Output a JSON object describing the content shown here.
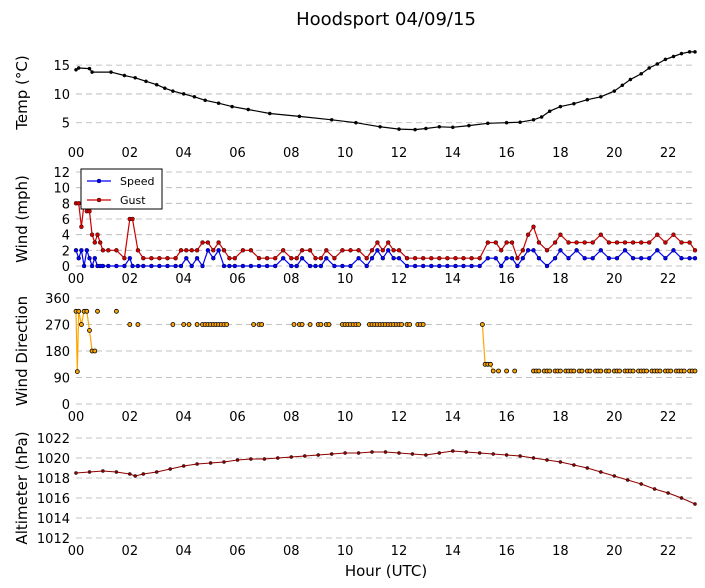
{
  "title": "Hoodsport 04/09/15",
  "xlabel": "Hour (UTC)",
  "xticks": [
    "00",
    "02",
    "04",
    "06",
    "08",
    "10",
    "12",
    "14",
    "16",
    "18",
    "20",
    "22"
  ],
  "colors": {
    "temp": "#000000",
    "speed": "#0000ff",
    "gust": "#cc0000",
    "direction": "#ffa500",
    "altimeter": "#8b0000",
    "grid": "#b0b0b0"
  },
  "chart_data": [
    {
      "type": "line",
      "ylabel": "Temp ($^\\circ$C)",
      "ylabel_display": "Temp (°C)",
      "yticks": [
        5,
        10,
        15
      ],
      "ylim": [
        2,
        18.5
      ],
      "xlim": [
        0,
        23
      ],
      "grid": true,
      "series": [
        {
          "key": "temp",
          "color": "#000000",
          "x": [
            0,
            0.1,
            0.5,
            0.6,
            1.3,
            1.8,
            2.2,
            2.6,
            3.0,
            3.3,
            3.6,
            4.0,
            4.4,
            4.8,
            5.3,
            5.8,
            6.4,
            7.2,
            8.3,
            9.5,
            10.4,
            11.3,
            12.0,
            12.6,
            13.0,
            13.5,
            14.0,
            14.6,
            15.3,
            16.0,
            16.5,
            17.0,
            17.3,
            17.6,
            18.0,
            18.5,
            19.0,
            19.5,
            20.0,
            20.3,
            20.6,
            21.0,
            21.3,
            21.6,
            21.9,
            22.2,
            22.5,
            22.8,
            23.0
          ],
          "y": [
            14.2,
            14.5,
            14.4,
            13.8,
            13.8,
            13.2,
            12.8,
            12.2,
            11.6,
            11.0,
            10.5,
            10.0,
            9.5,
            8.9,
            8.4,
            7.8,
            7.3,
            6.6,
            6.1,
            5.5,
            5.0,
            4.3,
            3.9,
            3.8,
            4.0,
            4.3,
            4.2,
            4.5,
            4.9,
            5.0,
            5.1,
            5.5,
            6.0,
            7.0,
            7.8,
            8.3,
            9.0,
            9.5,
            10.5,
            11.5,
            12.5,
            13.5,
            14.5,
            15.2,
            16.0,
            16.5,
            17.0,
            17.3,
            17.3
          ]
        }
      ]
    },
    {
      "type": "line",
      "ylabel": "Wind (mph)",
      "yticks": [
        0,
        2,
        4,
        6,
        8,
        10,
        12
      ],
      "ylim": [
        0,
        12
      ],
      "xlim": [
        0,
        23
      ],
      "grid": true,
      "legend": {
        "placement": "top-left",
        "entries": [
          "Speed",
          "Gust"
        ]
      },
      "series": [
        {
          "key": "speed",
          "name": "Speed",
          "color": "#0000ff",
          "x": [
            0,
            0.1,
            0.2,
            0.3,
            0.4,
            0.5,
            0.6,
            0.7,
            0.8,
            0.9,
            1.0,
            1.2,
            1.5,
            1.8,
            2.0,
            2.1,
            2.3,
            2.5,
            2.8,
            3.1,
            3.4,
            3.7,
            3.9,
            4.1,
            4.3,
            4.5,
            4.7,
            4.9,
            5.1,
            5.3,
            5.5,
            5.7,
            5.9,
            6.2,
            6.5,
            6.8,
            7.1,
            7.4,
            7.7,
            8.0,
            8.2,
            8.4,
            8.7,
            8.9,
            9.1,
            9.3,
            9.6,
            9.9,
            10.2,
            10.5,
            10.8,
            11.0,
            11.2,
            11.4,
            11.6,
            11.8,
            12.0,
            12.3,
            12.6,
            12.9,
            13.2,
            13.5,
            13.8,
            14.1,
            14.4,
            14.7,
            15.0,
            15.3,
            15.6,
            15.8,
            16.0,
            16.2,
            16.4,
            16.6,
            16.8,
            17.0,
            17.2,
            17.5,
            17.8,
            18.0,
            18.3,
            18.6,
            18.9,
            19.2,
            19.5,
            19.8,
            20.1,
            20.4,
            20.7,
            21.0,
            21.3,
            21.6,
            21.9,
            22.2,
            22.5,
            22.8,
            23.0
          ],
          "y": [
            2,
            1,
            2,
            0,
            2,
            1,
            0,
            1,
            0,
            0,
            0,
            0,
            0,
            0,
            1,
            0,
            0,
            0,
            0,
            0,
            0,
            0,
            0,
            1,
            0,
            1,
            0,
            2,
            1,
            2,
            0,
            0,
            0,
            0,
            0,
            0,
            0,
            0,
            1,
            0,
            0,
            1,
            0,
            0,
            0,
            1,
            0,
            0,
            0,
            1,
            0,
            1,
            2,
            1,
            2,
            1,
            1,
            0,
            0,
            0,
            0,
            0,
            0,
            0,
            0,
            0,
            0,
            1,
            1,
            0,
            1,
            1,
            0,
            1,
            2,
            2,
            1,
            0,
            1,
            2,
            1,
            2,
            1,
            1,
            2,
            1,
            1,
            2,
            1,
            1,
            1,
            2,
            1,
            2,
            1,
            1,
            1
          ]
        },
        {
          "key": "gust",
          "name": "Gust",
          "color": "#cc0000",
          "x": [
            0,
            0.1,
            0.2,
            0.3,
            0.4,
            0.5,
            0.6,
            0.7,
            0.8,
            0.9,
            1.0,
            1.2,
            1.5,
            1.8,
            2.0,
            2.1,
            2.3,
            2.5,
            2.8,
            3.1,
            3.4,
            3.7,
            3.9,
            4.1,
            4.3,
            4.5,
            4.7,
            4.9,
            5.1,
            5.3,
            5.5,
            5.7,
            5.9,
            6.2,
            6.5,
            6.8,
            7.1,
            7.4,
            7.7,
            8.0,
            8.2,
            8.4,
            8.7,
            8.9,
            9.1,
            9.3,
            9.6,
            9.9,
            10.2,
            10.5,
            10.8,
            11.0,
            11.2,
            11.4,
            11.6,
            11.8,
            12.0,
            12.3,
            12.6,
            12.9,
            13.2,
            13.5,
            13.8,
            14.1,
            14.4,
            14.7,
            15.0,
            15.3,
            15.6,
            15.8,
            16.0,
            16.2,
            16.4,
            16.6,
            16.8,
            17.0,
            17.2,
            17.5,
            17.8,
            18.0,
            18.3,
            18.6,
            18.9,
            19.2,
            19.5,
            19.8,
            20.1,
            20.4,
            20.7,
            21.0,
            21.3,
            21.6,
            21.9,
            22.2,
            22.5,
            22.8,
            23.0
          ],
          "y": [
            8,
            8,
            5,
            8,
            7,
            7,
            4,
            3,
            4,
            3,
            2,
            2,
            2,
            1,
            6,
            6,
            2,
            1,
            1,
            1,
            1,
            1,
            2,
            2,
            2,
            2,
            3,
            3,
            2,
            3,
            2,
            1,
            1,
            2,
            2,
            1,
            1,
            1,
            2,
            1,
            1,
            2,
            2,
            1,
            1,
            2,
            1,
            2,
            2,
            2,
            1,
            2,
            3,
            2,
            3,
            2,
            2,
            1,
            1,
            1,
            1,
            1,
            1,
            1,
            1,
            1,
            1,
            3,
            3,
            2,
            3,
            3,
            1,
            2,
            4,
            5,
            3,
            2,
            3,
            4,
            3,
            3,
            3,
            3,
            4,
            3,
            3,
            3,
            3,
            3,
            3,
            4,
            3,
            4,
            3,
            3,
            2
          ]
        }
      ]
    },
    {
      "type": "scatter",
      "ylabel": "Wind Direction",
      "yticks": [
        0,
        90,
        180,
        270,
        360
      ],
      "ylim": [
        0,
        360
      ],
      "xlim": [
        0,
        23
      ],
      "grid": true,
      "series": [
        {
          "key": "dir_line1",
          "color": "#ffa500",
          "line": true,
          "x": [
            0,
            0.05,
            0.1,
            0.2,
            0.3,
            0.4,
            0.5,
            0.6,
            0.7
          ],
          "y": [
            315,
            110,
            315,
            270,
            315,
            315,
            250,
            180,
            180
          ]
        },
        {
          "key": "dir_pts1",
          "color": "#ffa500",
          "line": false,
          "x": [
            0.8,
            1.5,
            2.0,
            2.3,
            3.6,
            4.0,
            4.2,
            4.5,
            4.7,
            4.8,
            4.9,
            5.0,
            5.1,
            5.2,
            5.3,
            5.4,
            5.5,
            5.6,
            6.6,
            6.8,
            6.9,
            8.1,
            8.3,
            8.4,
            8.7,
            9.0,
            9.1,
            9.3,
            9.4,
            9.9,
            10.0,
            10.1,
            10.2,
            10.3,
            10.4,
            10.5,
            10.9,
            11.0,
            11.1,
            11.2,
            11.3,
            11.4,
            11.5,
            11.6,
            11.7,
            11.8,
            11.9,
            12.0,
            12.1,
            12.3,
            12.4,
            12.7,
            12.8,
            12.9
          ],
          "y": [
            315,
            315,
            270,
            270,
            270,
            270,
            270,
            270,
            270,
            270,
            270,
            270,
            270,
            270,
            270,
            270,
            270,
            270,
            270,
            270,
            270,
            270,
            270,
            270,
            270,
            270,
            270,
            270,
            270,
            270,
            270,
            270,
            270,
            270,
            270,
            270,
            270,
            270,
            270,
            270,
            270,
            270,
            270,
            270,
            270,
            270,
            270,
            270,
            270,
            270,
            270,
            270,
            270,
            270
          ]
        },
        {
          "key": "dir_line2",
          "color": "#ffa500",
          "line": true,
          "x": [
            15.1,
            15.2,
            15.3,
            15.4,
            15.5
          ],
          "y": [
            270,
            135,
            135,
            135,
            112
          ]
        },
        {
          "key": "dir_pts2",
          "color": "#ffa500",
          "line": false,
          "x": [
            15.7,
            16.0,
            16.3,
            17.0,
            17.1,
            17.2,
            17.4,
            17.5,
            17.6,
            17.8,
            17.9,
            18.0,
            18.2,
            18.3,
            18.4,
            18.5,
            18.7,
            18.8,
            19.0,
            19.1,
            19.3,
            19.4,
            19.5,
            19.7,
            19.8,
            20.0,
            20.1,
            20.2,
            20.4,
            20.5,
            20.6,
            20.7,
            20.9,
            21.0,
            21.1,
            21.2,
            21.4,
            21.5,
            21.6,
            21.7,
            21.9,
            22.0,
            22.1,
            22.3,
            22.4,
            22.5,
            22.6,
            22.8,
            22.9,
            23.0
          ],
          "y": [
            112,
            112,
            112,
            112,
            112,
            112,
            112,
            112,
            112,
            112,
            112,
            112,
            112,
            112,
            112,
            112,
            112,
            112,
            112,
            112,
            112,
            112,
            112,
            112,
            112,
            112,
            112,
            112,
            112,
            112,
            112,
            112,
            112,
            112,
            112,
            112,
            112,
            112,
            112,
            112,
            112,
            112,
            112,
            112,
            112,
            112,
            112,
            112,
            112,
            112
          ]
        }
      ]
    },
    {
      "type": "line",
      "ylabel": "Altimeter (hPa)",
      "yticks": [
        1012,
        1014,
        1016,
        1018,
        1020,
        1022
      ],
      "ylim": [
        1012,
        1022
      ],
      "xlim": [
        0,
        23
      ],
      "grid": true,
      "series": [
        {
          "key": "altimeter",
          "color": "#8b0000",
          "x": [
            0,
            0.5,
            1.0,
            1.5,
            2.0,
            2.2,
            2.5,
            3.0,
            3.5,
            4.0,
            4.5,
            5.0,
            5.5,
            6.0,
            6.5,
            7.0,
            7.5,
            8.0,
            8.5,
            9.0,
            9.5,
            10.0,
            10.5,
            11.0,
            11.5,
            12.0,
            12.5,
            13.0,
            13.5,
            14.0,
            14.5,
            15.0,
            15.5,
            16.0,
            16.5,
            17.0,
            17.5,
            18.0,
            18.5,
            19.0,
            19.5,
            20.0,
            20.5,
            21.0,
            21.5,
            22.0,
            22.5,
            23.0
          ],
          "y": [
            1018.5,
            1018.6,
            1018.7,
            1018.6,
            1018.4,
            1018.2,
            1018.4,
            1018.6,
            1018.9,
            1019.2,
            1019.4,
            1019.5,
            1019.6,
            1019.8,
            1019.9,
            1019.9,
            1020.0,
            1020.1,
            1020.2,
            1020.3,
            1020.4,
            1020.5,
            1020.5,
            1020.6,
            1020.6,
            1020.5,
            1020.4,
            1020.3,
            1020.5,
            1020.7,
            1020.6,
            1020.5,
            1020.4,
            1020.3,
            1020.2,
            1020.0,
            1019.8,
            1019.6,
            1019.3,
            1019.0,
            1018.6,
            1018.2,
            1017.8,
            1017.4,
            1016.9,
            1016.5,
            1016.0,
            1015.4
          ]
        }
      ]
    }
  ]
}
